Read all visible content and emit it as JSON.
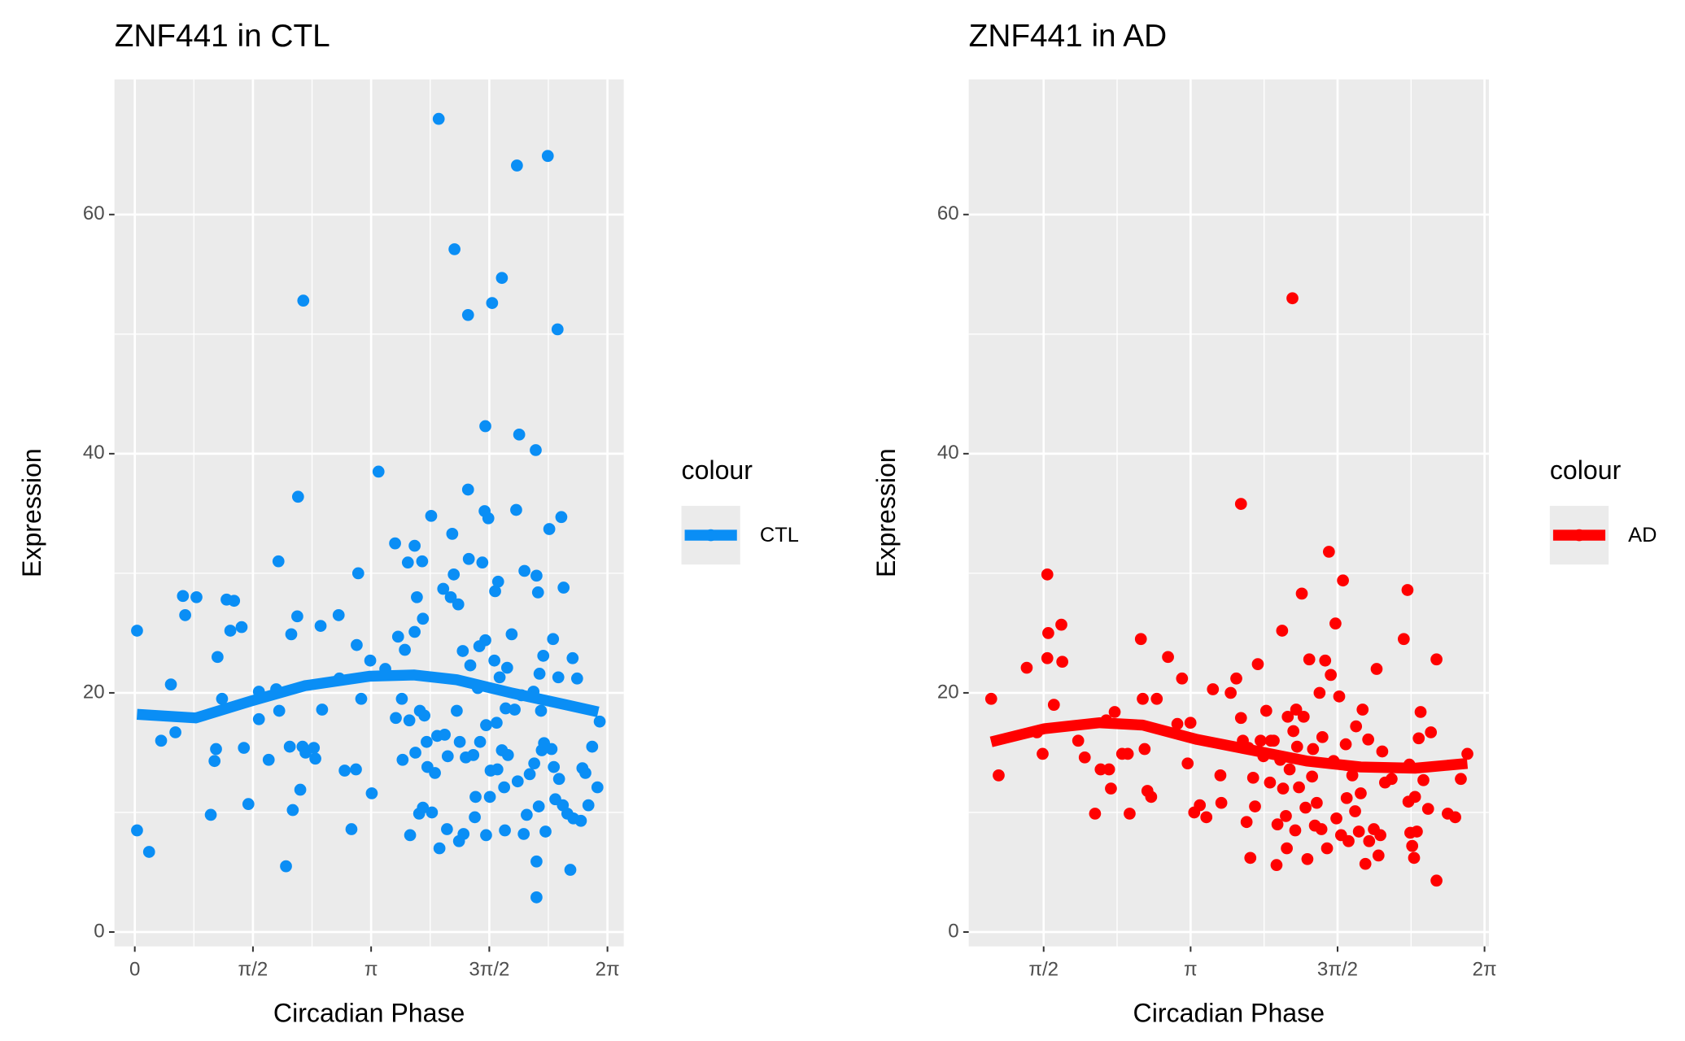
{
  "chart_data": [
    {
      "type": "scatter",
      "title": "ZNF441 in CTL",
      "x_label": "Circadian Phase",
      "y_label": "Expression",
      "legend_title": "colour",
      "legend_position": "right",
      "grid": true,
      "xlim": [
        -0.27,
        6.5
      ],
      "ylim": [
        -1.2,
        71.3
      ],
      "xticks": [
        0,
        {
          "value": 1.5708,
          "label": "π/2"
        },
        {
          "value": 3.1416,
          "label": "π"
        },
        {
          "value": 4.7124,
          "label": "3π/2"
        },
        {
          "value": 6.2832,
          "label": "2π"
        }
      ],
      "yticks": [
        0,
        20,
        40,
        60
      ],
      "series": [
        {
          "name": "CTL",
          "color": "#0a8ef5",
          "x": [
            0.03,
            0.03,
            0.19,
            0.35,
            0.48,
            0.54,
            0.64,
            0.67,
            0.82,
            1.01,
            1.06,
            1.08,
            1.1,
            1.16,
            1.22,
            1.27,
            1.32,
            1.42,
            1.45,
            1.51,
            1.65,
            1.65,
            1.78,
            1.88,
            1.91,
            1.92,
            2.01,
            2.06,
            2.08,
            2.1,
            2.16,
            2.17,
            2.2,
            2.23,
            2.24,
            2.27,
            2.38,
            2.4,
            2.47,
            2.49,
            2.71,
            2.72,
            2.79,
            2.88,
            2.94,
            2.95,
            2.97,
            3.01,
            3.13,
            3.15,
            3.24,
            3.33,
            3.46,
            3.47,
            3.5,
            3.55,
            3.56,
            3.59,
            3.63,
            3.65,
            3.66,
            3.72,
            3.72,
            3.73,
            3.75,
            3.78,
            3.79,
            3.82,
            3.83,
            3.83,
            3.85,
            3.88,
            3.89,
            3.94,
            3.95,
            3.99,
            4.02,
            4.04,
            4.05,
            4.1,
            4.12,
            4.15,
            4.16,
            4.2,
            4.22,
            4.24,
            4.25,
            4.28,
            4.3,
            4.31,
            4.32,
            4.36,
            4.37,
            4.4,
            4.43,
            4.43,
            4.44,
            4.46,
            4.5,
            4.52,
            4.53,
            4.56,
            4.59,
            4.62,
            4.65,
            4.66,
            4.66,
            4.67,
            4.67,
            4.7,
            4.72,
            4.73,
            4.75,
            4.78,
            4.79,
            4.81,
            4.82,
            4.83,
            4.85,
            4.88,
            4.88,
            4.91,
            4.92,
            4.95,
            4.96,
            5.01,
            5.05,
            5.07,
            5.08,
            5.09,
            5.11,
            5.14,
            5.17,
            5.18,
            5.21,
            5.25,
            5.3,
            5.31,
            5.33,
            5.34,
            5.36,
            5.37,
            5.38,
            5.4,
            5.41,
            5.43,
            5.44,
            5.46,
            5.49,
            5.51,
            5.54,
            5.56,
            5.57,
            5.59,
            5.62,
            5.63,
            5.64,
            5.67,
            5.69,
            5.7,
            5.75,
            5.79,
            5.82,
            5.83,
            5.88,
            5.93,
            5.95,
            5.99,
            6.03,
            6.08,
            6.15,
            6.18,
            5.34,
            5.34,
            4.93,
            4.58
          ],
          "values": [
            25.2,
            8.5,
            6.7,
            16,
            20.7,
            16.7,
            28.1,
            26.5,
            28,
            9.8,
            14.3,
            15.3,
            23,
            19.5,
            27.8,
            25.2,
            27.7,
            25.5,
            15.4,
            10.7,
            20.1,
            17.8,
            14.4,
            20.3,
            31,
            18.5,
            5.5,
            15.5,
            24.9,
            10.2,
            26.4,
            36.4,
            11.9,
            15.5,
            52.8,
            15,
            15.4,
            14.5,
            25.6,
            18.6,
            26.5,
            21.2,
            13.5,
            8.6,
            13.6,
            24,
            30,
            19.5,
            22.7,
            11.6,
            38.5,
            22,
            32.5,
            17.9,
            24.7,
            19.5,
            14.4,
            23.6,
            30.9,
            17.7,
            8.1,
            32.3,
            25.1,
            15,
            28,
            9.9,
            18.5,
            31,
            10.4,
            26.2,
            18.1,
            15.9,
            13.8,
            34.8,
            10,
            13.3,
            16.4,
            68,
            7,
            28.7,
            16.5,
            8.6,
            14.7,
            28,
            33.3,
            29.9,
            57.1,
            18.5,
            27.4,
            7.6,
            15.9,
            23.5,
            8.2,
            14.6,
            51.6,
            37,
            31.2,
            22.3,
            14.8,
            9.6,
            11.3,
            20.4,
            15.9,
            30.9,
            35.2,
            42.3,
            24.4,
            17.3,
            8.1,
            34.6,
            11.3,
            13.5,
            52.6,
            22.7,
            28.5,
            17.5,
            13.6,
            29.3,
            21.3,
            54.7,
            15.2,
            12.1,
            8.5,
            22.1,
            14.8,
            24.9,
            18.6,
            35.3,
            64.1,
            12.6,
            41.6,
            19.8,
            8.2,
            30.2,
            9.8,
            13.2,
            20.1,
            14.1,
            40.3,
            29.8,
            28.4,
            10.5,
            21.6,
            18.5,
            15.2,
            23.1,
            15.8,
            8.4,
            64.9,
            33.7,
            15.3,
            24.5,
            13.8,
            11.1,
            50.4,
            21.3,
            12.8,
            34.7,
            10.6,
            28.8,
            9.9,
            5.2,
            22.9,
            9.5,
            21.2,
            9.3,
            13.7,
            13.3,
            10.6,
            15.5,
            12.1,
            17.6,
            2.9,
            5.9,
            18.7,
            23.9
          ]
        }
      ],
      "smooth": {
        "x": [
          0.03,
          0.81,
          1.54,
          2.26,
          3.13,
          3.71,
          4.28,
          5.0,
          5.73,
          6.16
        ],
        "values": [
          18.2,
          17.9,
          19.3,
          20.6,
          21.4,
          21.5,
          21.1,
          20,
          19,
          18.4
        ]
      }
    },
    {
      "type": "scatter",
      "title": "ZNF441 in AD",
      "x_label": "Circadian Phase",
      "y_label": "Expression",
      "legend_title": "colour",
      "legend_position": "right",
      "grid": true,
      "xlim": [
        0.77,
        6.33
      ],
      "ylim": [
        -1.2,
        71.3
      ],
      "xticks": [
        {
          "value": 1.5708,
          "label": "π/2"
        },
        {
          "value": 3.1416,
          "label": "π"
        },
        {
          "value": 4.7124,
          "label": "3π/2"
        },
        {
          "value": 6.2832,
          "label": "2π"
        }
      ],
      "yticks": [
        0,
        20,
        40,
        60
      ],
      "series": [
        {
          "name": "AD",
          "color": "#ff0000",
          "x": [
            1.01,
            1.09,
            1.39,
            1.5,
            1.56,
            1.61,
            1.62,
            1.61,
            1.68,
            1.76,
            1.77,
            1.94,
            2.01,
            2.12,
            2.18,
            2.24,
            2.27,
            2.29,
            2.33,
            2.41,
            2.47,
            2.49,
            2.61,
            2.63,
            2.65,
            2.68,
            2.72,
            2.78,
            2.9,
            3.0,
            3.05,
            3.11,
            3.14,
            3.18,
            3.24,
            3.31,
            3.38,
            3.46,
            3.47,
            3.57,
            3.63,
            3.68,
            3.68,
            3.7,
            3.74,
            3.76,
            3.78,
            3.81,
            3.83,
            3.86,
            3.89,
            3.92,
            3.95,
            3.99,
            4.0,
            4.03,
            4.06,
            4.07,
            4.1,
            4.12,
            4.13,
            4.16,
            4.17,
            4.18,
            4.2,
            4.23,
            4.24,
            4.26,
            4.27,
            4.28,
            4.3,
            4.33,
            4.35,
            4.37,
            4.39,
            4.41,
            4.44,
            4.45,
            4.47,
            4.49,
            4.52,
            4.54,
            4.55,
            4.58,
            4.6,
            4.62,
            4.64,
            4.67,
            4.69,
            4.7,
            4.73,
            4.75,
            4.77,
            4.8,
            4.81,
            4.83,
            4.87,
            4.9,
            4.91,
            4.94,
            4.96,
            4.98,
            5.01,
            5.04,
            5.05,
            5.1,
            5.13,
            5.15,
            5.17,
            5.19,
            5.22,
            5.29,
            5.42,
            5.46,
            5.48,
            5.47,
            5.49,
            5.51,
            5.53,
            5.54,
            5.56,
            5.58,
            5.6,
            5.63,
            5.68,
            5.71,
            5.77,
            5.77,
            5.89,
            5.97,
            6.03,
            6.1
          ],
          "values": [
            19.5,
            13.1,
            22.1,
            16.7,
            14.9,
            29.9,
            25,
            22.9,
            19,
            25.7,
            22.6,
            16,
            14.6,
            9.9,
            13.6,
            17.7,
            13.6,
            12,
            18.4,
            14.9,
            14.9,
            9.9,
            24.5,
            19.5,
            15.3,
            11.8,
            11.3,
            19.5,
            23,
            17.4,
            21.2,
            14.1,
            17.5,
            10,
            10.6,
            9.6,
            20.3,
            13.1,
            10.8,
            20,
            21.2,
            35.8,
            17.9,
            16,
            9.2,
            15.4,
            6.2,
            12.9,
            10.5,
            22.4,
            16,
            14.7,
            18.5,
            12.5,
            16,
            16,
            5.6,
            9,
            14.4,
            25.2,
            12,
            9.7,
            7,
            18,
            13.6,
            53,
            16.8,
            8.5,
            18.6,
            15.5,
            12.1,
            28.3,
            18,
            10.4,
            6.1,
            22.8,
            13,
            15.3,
            8.9,
            10.8,
            20,
            8.6,
            16.3,
            22.7,
            7,
            31.8,
            21.5,
            14.3,
            25.8,
            9.5,
            19.7,
            8.1,
            29.4,
            15.7,
            11.2,
            7.6,
            13.1,
            10.1,
            17.2,
            8.4,
            11.6,
            18.6,
            5.7,
            16.1,
            7.6,
            8.6,
            22,
            6.4,
            8.1,
            15.1,
            12.5,
            12.8,
            24.5,
            28.6,
            14,
            10.9,
            8.3,
            7.2,
            6.2,
            11.3,
            8.4,
            16.2,
            18.4,
            12.7,
            10.3,
            16.7,
            22.8,
            4.3,
            9.9,
            9.6,
            12.8,
            14.9
          ]
        }
      ],
      "smooth": {
        "x": [
          1.01,
          1.58,
          2.17,
          2.63,
          3.21,
          3.8,
          4.38,
          4.96,
          5.54,
          6.1
        ],
        "values": [
          15.9,
          17,
          17.5,
          17.3,
          16.1,
          15.2,
          14.3,
          13.8,
          13.7,
          14.1
        ]
      }
    }
  ]
}
